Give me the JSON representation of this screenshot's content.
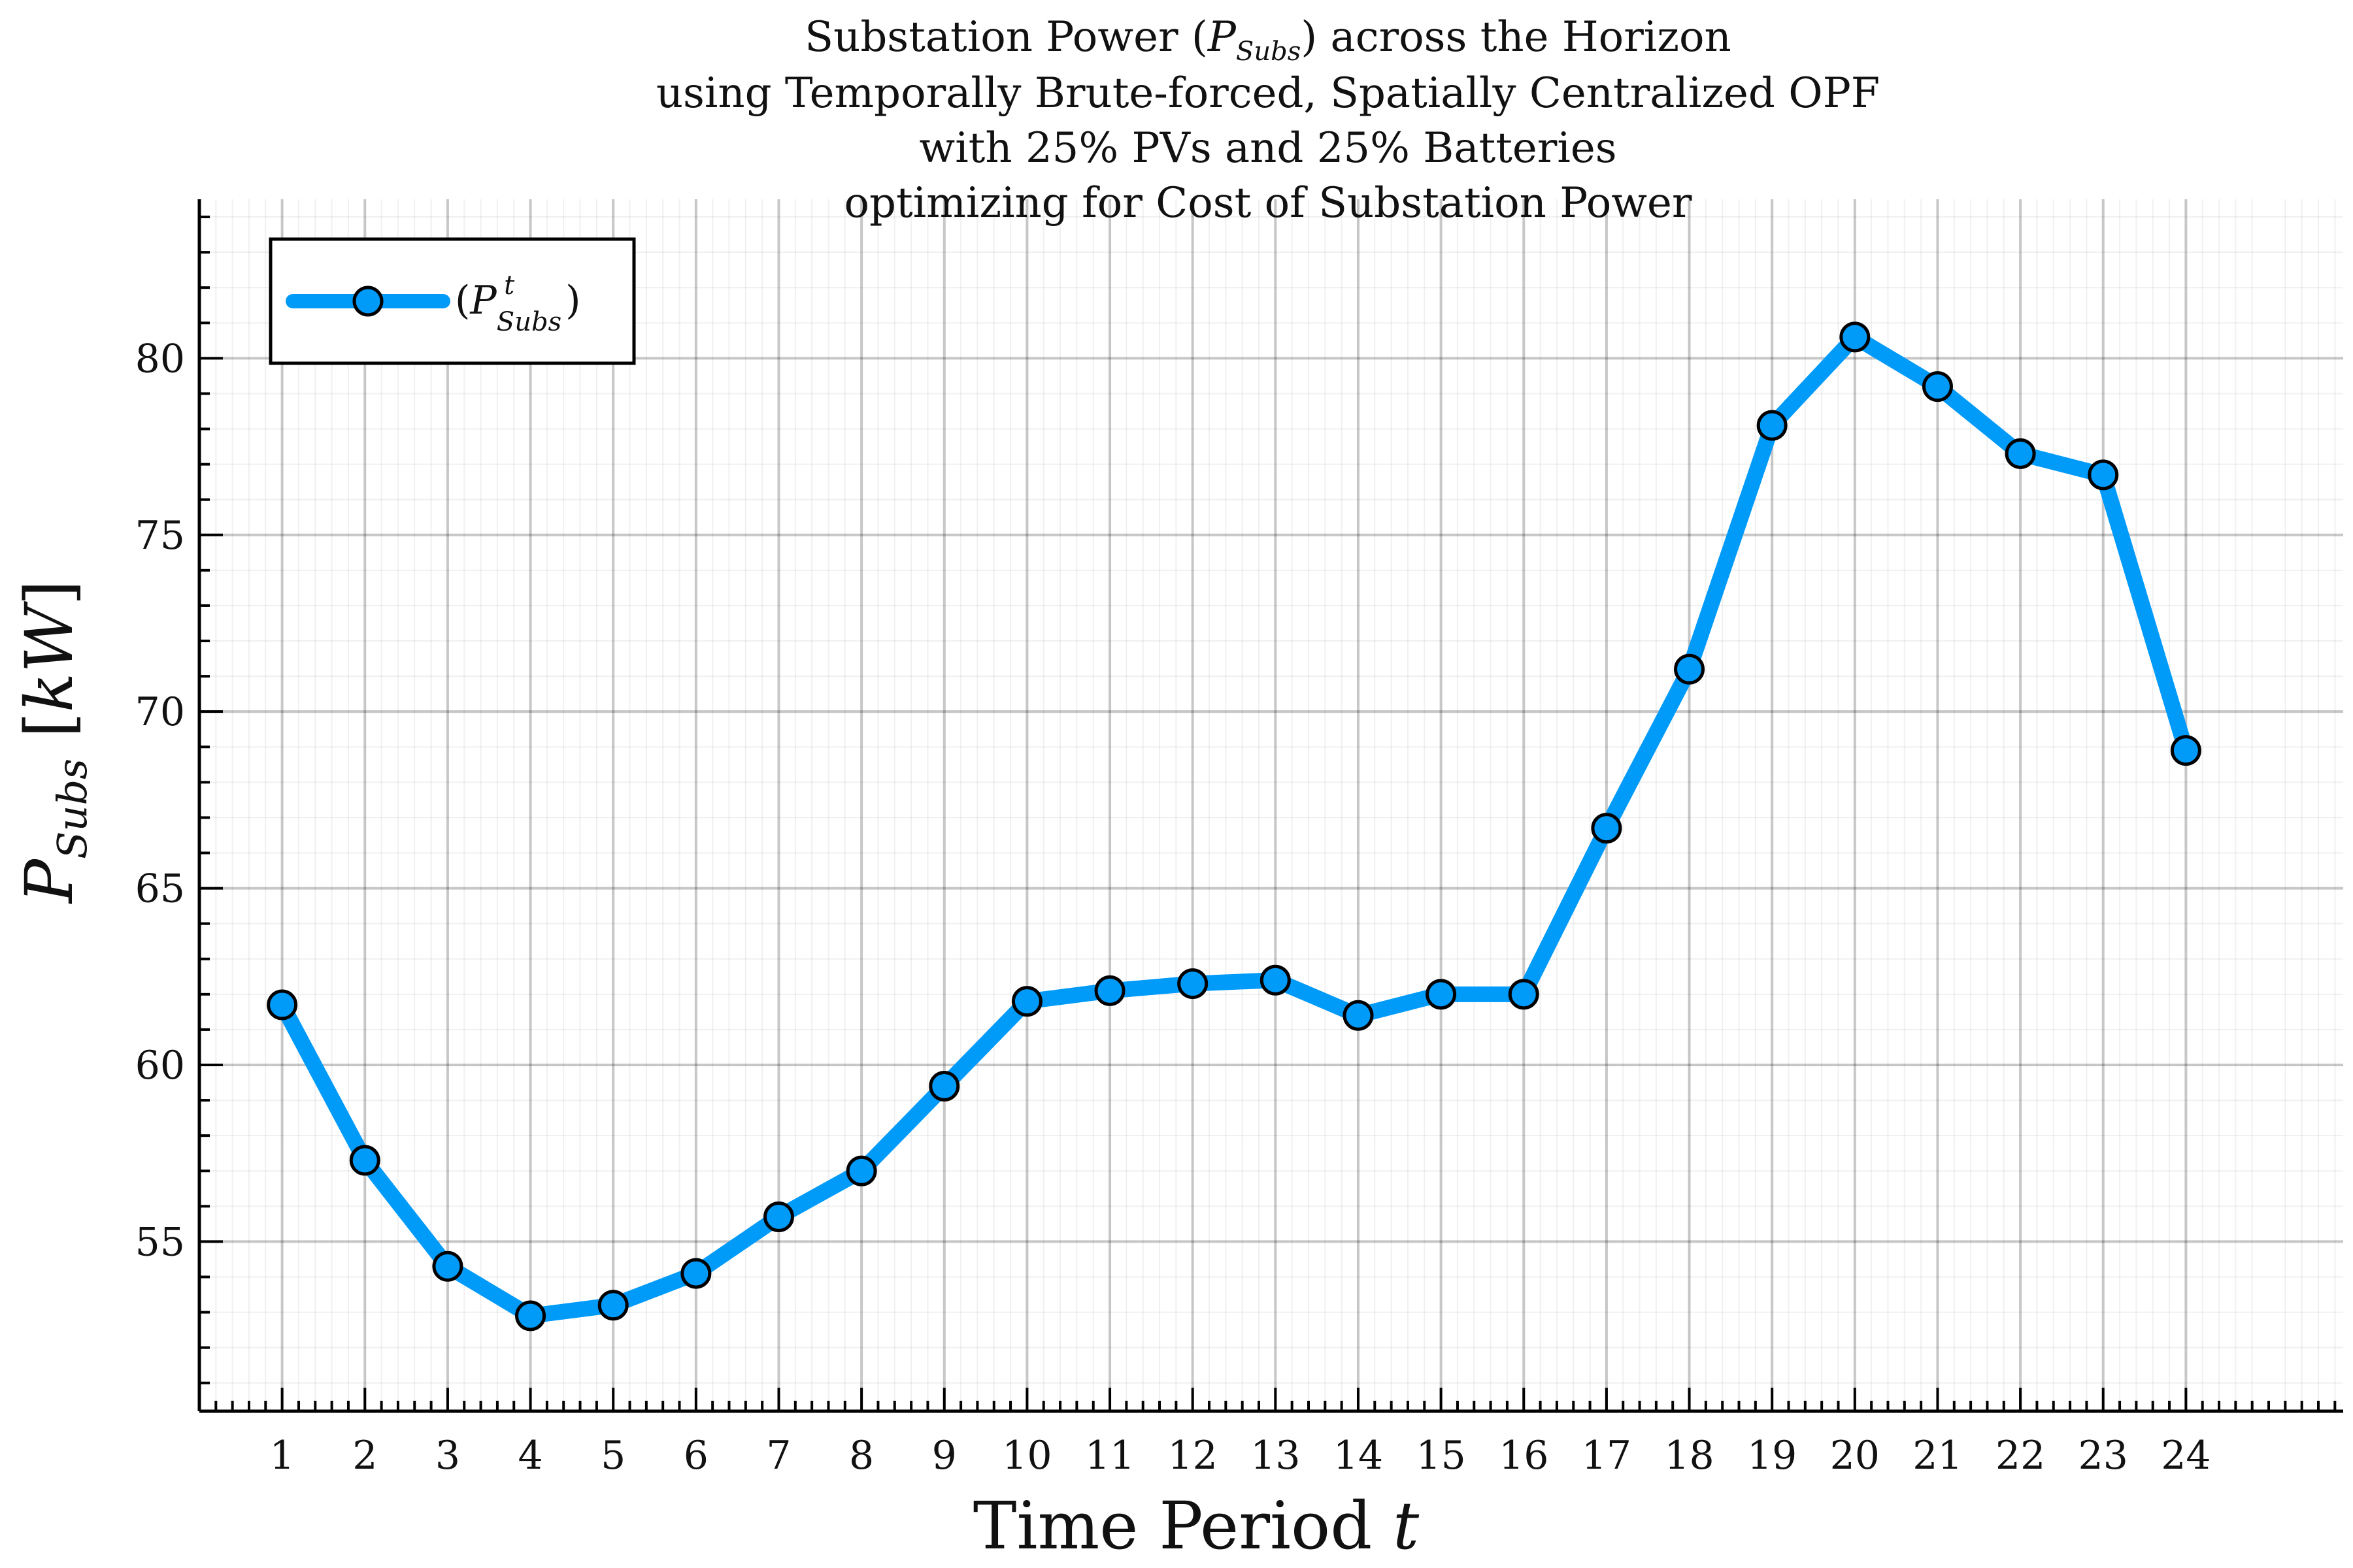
{
  "chart_data": {
    "type": "line",
    "title_lines": [
      "Substation Power (P_Subs) across the Horizon",
      "using Temporally Brute-forced, Spatially Centralized OPF",
      "with 25% PVs and 25% Batteries",
      "optimizing for Cost of Substation Power"
    ],
    "xlabel": "Time Period t",
    "ylabel": "P_Subs [kW]",
    "x": [
      1,
      2,
      3,
      4,
      5,
      6,
      7,
      8,
      9,
      10,
      11,
      12,
      13,
      14,
      15,
      16,
      17,
      18,
      19,
      20,
      21,
      22,
      23,
      24
    ],
    "series": [
      {
        "name": "(P^t_Subs)",
        "color": "#009af9",
        "values": [
          61.7,
          57.3,
          54.3,
          52.9,
          53.2,
          54.1,
          55.7,
          57.0,
          59.4,
          61.8,
          62.1,
          62.3,
          62.4,
          61.4,
          62.0,
          62.0,
          66.7,
          71.2,
          78.1,
          80.6,
          79.2,
          77.3,
          76.7,
          68.9
        ]
      }
    ],
    "xticks": [
      1,
      2,
      3,
      4,
      5,
      6,
      7,
      8,
      9,
      10,
      11,
      12,
      13,
      14,
      15,
      16,
      17,
      18,
      19,
      20,
      21,
      22,
      23,
      24
    ],
    "yticks": [
      55,
      60,
      65,
      70,
      75,
      80
    ],
    "xlim": [
      0.0,
      25.9
    ],
    "ylim": [
      50.2,
      84.5
    ],
    "grid": true,
    "minor_grid": true,
    "legend_position": "top-left"
  }
}
